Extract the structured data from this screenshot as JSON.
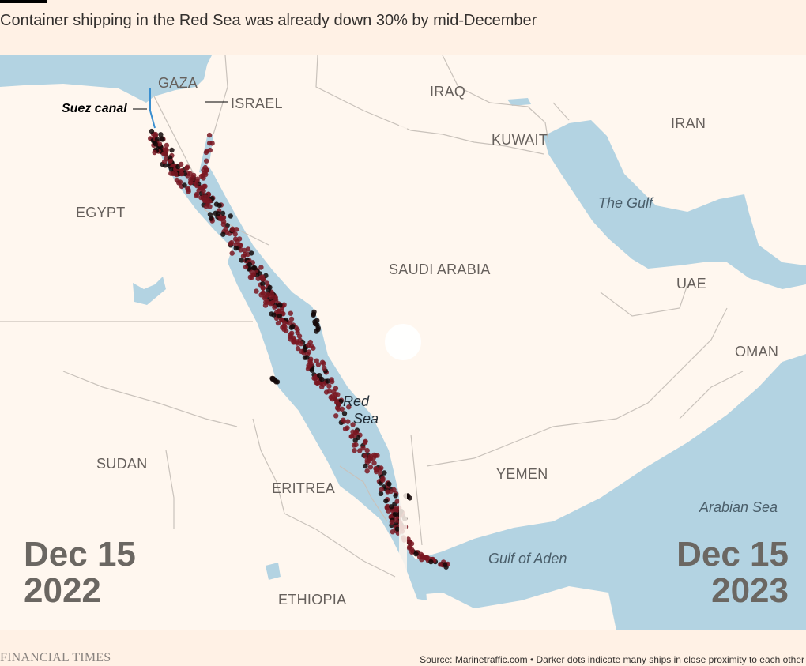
{
  "headline": "Container shipping in the Red Sea was already down 30% by mid-December",
  "colors": {
    "background": "#fff1e5",
    "land": "#fff7ef",
    "sea": "#b3d3e2",
    "border": "#c9c2bb",
    "ship_dot": "#7a1722",
    "ship_dense": "#140808",
    "canal_line": "#3a8fd0"
  },
  "map": {
    "country_labels": [
      "GAZA",
      "ISRAEL",
      "IRAQ",
      "KUWAIT",
      "IRAN",
      "EGYPT",
      "SAUDI ARABIA",
      "UAE",
      "OMAN",
      "SUDAN",
      "ERITREA",
      "YEMEN",
      "ETHIOPIA"
    ],
    "water_labels": [
      "The Gulf",
      "Red",
      "Sea",
      "Arabian Sea",
      "Gulf of Aden"
    ],
    "feature_label": "Suez canal",
    "left_panel": {
      "date_line1": "Dec 15",
      "date_line2": "2022"
    },
    "right_panel": {
      "date_line1": "Dec 15",
      "date_line2": "2023"
    }
  },
  "footer": {
    "brand": "FINANCIAL TIMES",
    "source": "Source: Marinetraffic.com • Darker dots indicate many ships in close proximity to each other"
  }
}
